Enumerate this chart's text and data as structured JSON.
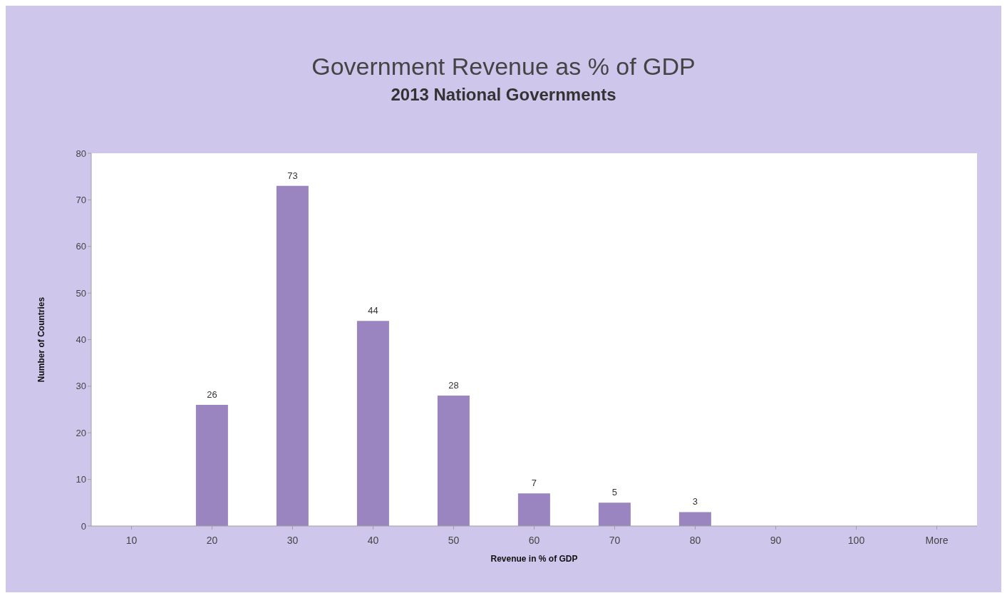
{
  "chart_data": {
    "type": "bar",
    "title": "Government Revenue as % of GDP",
    "subtitle": "2013 National Governments",
    "xlabel": "Revenue in % of GDP",
    "ylabel": "Number of Countries",
    "categories": [
      "10",
      "20",
      "30",
      "40",
      "50",
      "60",
      "70",
      "80",
      "90",
      "100",
      "More"
    ],
    "values": [
      0,
      26,
      73,
      44,
      28,
      7,
      5,
      3,
      0,
      0,
      0
    ],
    "value_labels": [
      null,
      "26",
      "73",
      "44",
      "28",
      "7",
      "5",
      "3",
      null,
      null,
      null
    ],
    "color": "#9a85c0",
    "ylim": [
      0,
      80
    ],
    "yticks": [
      0,
      10,
      20,
      30,
      40,
      50,
      60,
      70,
      80
    ],
    "grid": false
  }
}
